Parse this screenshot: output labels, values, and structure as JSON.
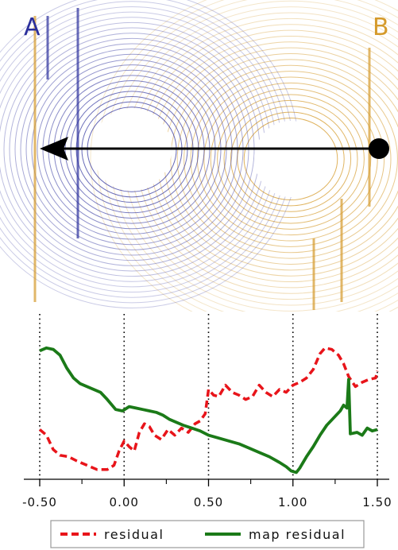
{
  "scene": {
    "label_a": "A",
    "label_b": "B",
    "color_a": "#2b2f9c",
    "color_b": "#d59a2a"
  },
  "chart_data": {
    "type": "line",
    "xlim": [
      -0.5,
      1.5
    ],
    "xticks": [
      -0.5,
      0.0,
      0.5,
      1.0,
      1.5
    ],
    "xtick_labels": [
      "-0.50",
      "0.00",
      "0.50",
      "1.00",
      "1.50"
    ],
    "ylim": [
      0,
      1
    ],
    "grid": "vertical dotted lines at major ticks",
    "legend_position": "bottom",
    "series": [
      {
        "name": "residual",
        "color": "#e8141a",
        "style": "dashed",
        "points": [
          [
            -0.5,
            0.32
          ],
          [
            -0.46,
            0.28
          ],
          [
            -0.42,
            0.18
          ],
          [
            -0.38,
            0.14
          ],
          [
            -0.33,
            0.13
          ],
          [
            -0.28,
            0.1
          ],
          [
            -0.22,
            0.07
          ],
          [
            -0.16,
            0.04
          ],
          [
            -0.1,
            0.04
          ],
          [
            -0.06,
            0.07
          ],
          [
            -0.03,
            0.17
          ],
          [
            0.0,
            0.24
          ],
          [
            0.03,
            0.2
          ],
          [
            0.06,
            0.17
          ],
          [
            0.09,
            0.3
          ],
          [
            0.12,
            0.36
          ],
          [
            0.15,
            0.34
          ],
          [
            0.18,
            0.28
          ],
          [
            0.22,
            0.25
          ],
          [
            0.26,
            0.32
          ],
          [
            0.3,
            0.28
          ],
          [
            0.34,
            0.33
          ],
          [
            0.38,
            0.3
          ],
          [
            0.42,
            0.36
          ],
          [
            0.45,
            0.38
          ],
          [
            0.48,
            0.43
          ],
          [
            0.5,
            0.6
          ],
          [
            0.53,
            0.56
          ],
          [
            0.56,
            0.55
          ],
          [
            0.6,
            0.63
          ],
          [
            0.64,
            0.58
          ],
          [
            0.68,
            0.56
          ],
          [
            0.72,
            0.53
          ],
          [
            0.76,
            0.55
          ],
          [
            0.8,
            0.63
          ],
          [
            0.84,
            0.58
          ],
          [
            0.88,
            0.55
          ],
          [
            0.92,
            0.6
          ],
          [
            0.96,
            0.58
          ],
          [
            1.0,
            0.63
          ],
          [
            1.04,
            0.65
          ],
          [
            1.08,
            0.68
          ],
          [
            1.12,
            0.74
          ],
          [
            1.16,
            0.85
          ],
          [
            1.19,
            0.89
          ],
          [
            1.23,
            0.88
          ],
          [
            1.27,
            0.84
          ],
          [
            1.3,
            0.78
          ],
          [
            1.33,
            0.69
          ],
          [
            1.37,
            0.62
          ],
          [
            1.41,
            0.65
          ],
          [
            1.45,
            0.67
          ],
          [
            1.49,
            0.68
          ],
          [
            1.5,
            0.73
          ]
        ]
      },
      {
        "name": "map residual",
        "color": "#1b7a18",
        "style": "solid",
        "points": [
          [
            -0.5,
            0.87
          ],
          [
            -0.46,
            0.89
          ],
          [
            -0.42,
            0.88
          ],
          [
            -0.38,
            0.84
          ],
          [
            -0.34,
            0.75
          ],
          [
            -0.3,
            0.68
          ],
          [
            -0.26,
            0.64
          ],
          [
            -0.22,
            0.62
          ],
          [
            -0.18,
            0.6
          ],
          [
            -0.14,
            0.58
          ],
          [
            -0.1,
            0.53
          ],
          [
            -0.05,
            0.46
          ],
          [
            -0.01,
            0.45
          ],
          [
            0.03,
            0.48
          ],
          [
            0.07,
            0.47
          ],
          [
            0.11,
            0.46
          ],
          [
            0.15,
            0.45
          ],
          [
            0.19,
            0.44
          ],
          [
            0.23,
            0.42
          ],
          [
            0.27,
            0.39
          ],
          [
            0.31,
            0.37
          ],
          [
            0.35,
            0.35
          ],
          [
            0.4,
            0.33
          ],
          [
            0.45,
            0.31
          ],
          [
            0.5,
            0.28
          ],
          [
            0.56,
            0.26
          ],
          [
            0.62,
            0.24
          ],
          [
            0.68,
            0.22
          ],
          [
            0.74,
            0.19
          ],
          [
            0.8,
            0.16
          ],
          [
            0.86,
            0.13
          ],
          [
            0.92,
            0.09
          ],
          [
            0.96,
            0.06
          ],
          [
            0.99,
            0.03
          ],
          [
            1.02,
            0.02
          ],
          [
            1.04,
            0.05
          ],
          [
            1.08,
            0.13
          ],
          [
            1.12,
            0.2
          ],
          [
            1.16,
            0.28
          ],
          [
            1.2,
            0.35
          ],
          [
            1.24,
            0.4
          ],
          [
            1.28,
            0.45
          ],
          [
            1.3,
            0.49
          ],
          [
            1.32,
            0.47
          ],
          [
            1.33,
            0.67
          ],
          [
            1.34,
            0.29
          ],
          [
            1.38,
            0.3
          ],
          [
            1.41,
            0.28
          ],
          [
            1.44,
            0.33
          ],
          [
            1.47,
            0.31
          ],
          [
            1.5,
            0.32
          ]
        ]
      }
    ],
    "legend": [
      "residual",
      "map residual"
    ]
  }
}
